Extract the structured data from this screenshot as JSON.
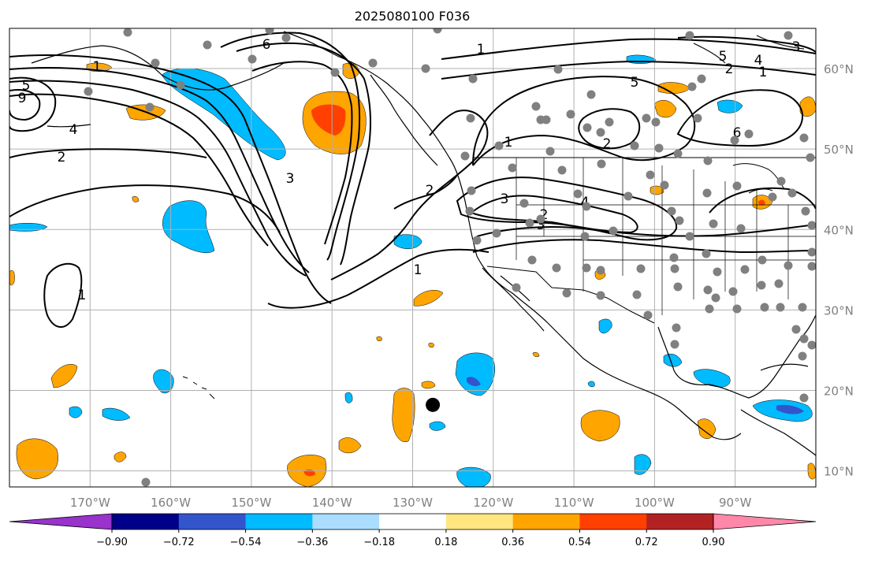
{
  "title": "2025080100 F036",
  "map": {
    "lon_ticks": [
      {
        "value": -170,
        "label": "170°W"
      },
      {
        "value": -160,
        "label": "160°W"
      },
      {
        "value": -150,
        "label": "150°W"
      },
      {
        "value": -140,
        "label": "140°W"
      },
      {
        "value": -130,
        "label": "130°W"
      },
      {
        "value": -120,
        "label": "120°W"
      },
      {
        "value": -110,
        "label": "110°W"
      },
      {
        "value": -100,
        "label": "100°W"
      },
      {
        "value": -90,
        "label": "90°W"
      }
    ],
    "lat_ticks": [
      {
        "value": 10,
        "label": "10°N"
      },
      {
        "value": 20,
        "label": "20°N"
      },
      {
        "value": 30,
        "label": "30°N"
      },
      {
        "value": 40,
        "label": "40°N"
      },
      {
        "value": 50,
        "label": "50°N"
      },
      {
        "value": 60,
        "label": "60°N"
      }
    ],
    "extent": {
      "lon": [
        -180,
        -80
      ],
      "lat": [
        8,
        65
      ]
    },
    "grid": true,
    "contour_labels": [
      "1",
      "2",
      "3",
      "4",
      "5",
      "6",
      "9",
      "1",
      "2",
      "1",
      "1",
      "2",
      "3",
      "1",
      "2",
      "3",
      "4",
      "5",
      "6",
      "1",
      "2",
      "3",
      "4",
      "5"
    ],
    "storm_center": {
      "lon": -127.5,
      "lat": 18.2
    }
  },
  "colorbar": {
    "tick_labels": [
      "−0.90",
      "−0.72",
      "−0.54",
      "−0.36",
      "−0.18",
      "0.18",
      "0.36",
      "0.54",
      "0.72",
      "0.90"
    ],
    "colors": [
      "#9933cc",
      "#000088",
      "#3355cc",
      "#00bbff",
      "#aaddff",
      "#ffffff",
      "#ffe680",
      "#ffa500",
      "#ff4000",
      "#b22222",
      "#ff88aa"
    ],
    "extend": "both"
  },
  "colors": {
    "neg_light": "#aaddff",
    "neg_mid": "#00bbff",
    "neg_dark": "#3355cc",
    "pos_light": "#ffe680",
    "pos_mid": "#ffa500",
    "pos_dark": "#ff4000",
    "station": "#808080"
  }
}
